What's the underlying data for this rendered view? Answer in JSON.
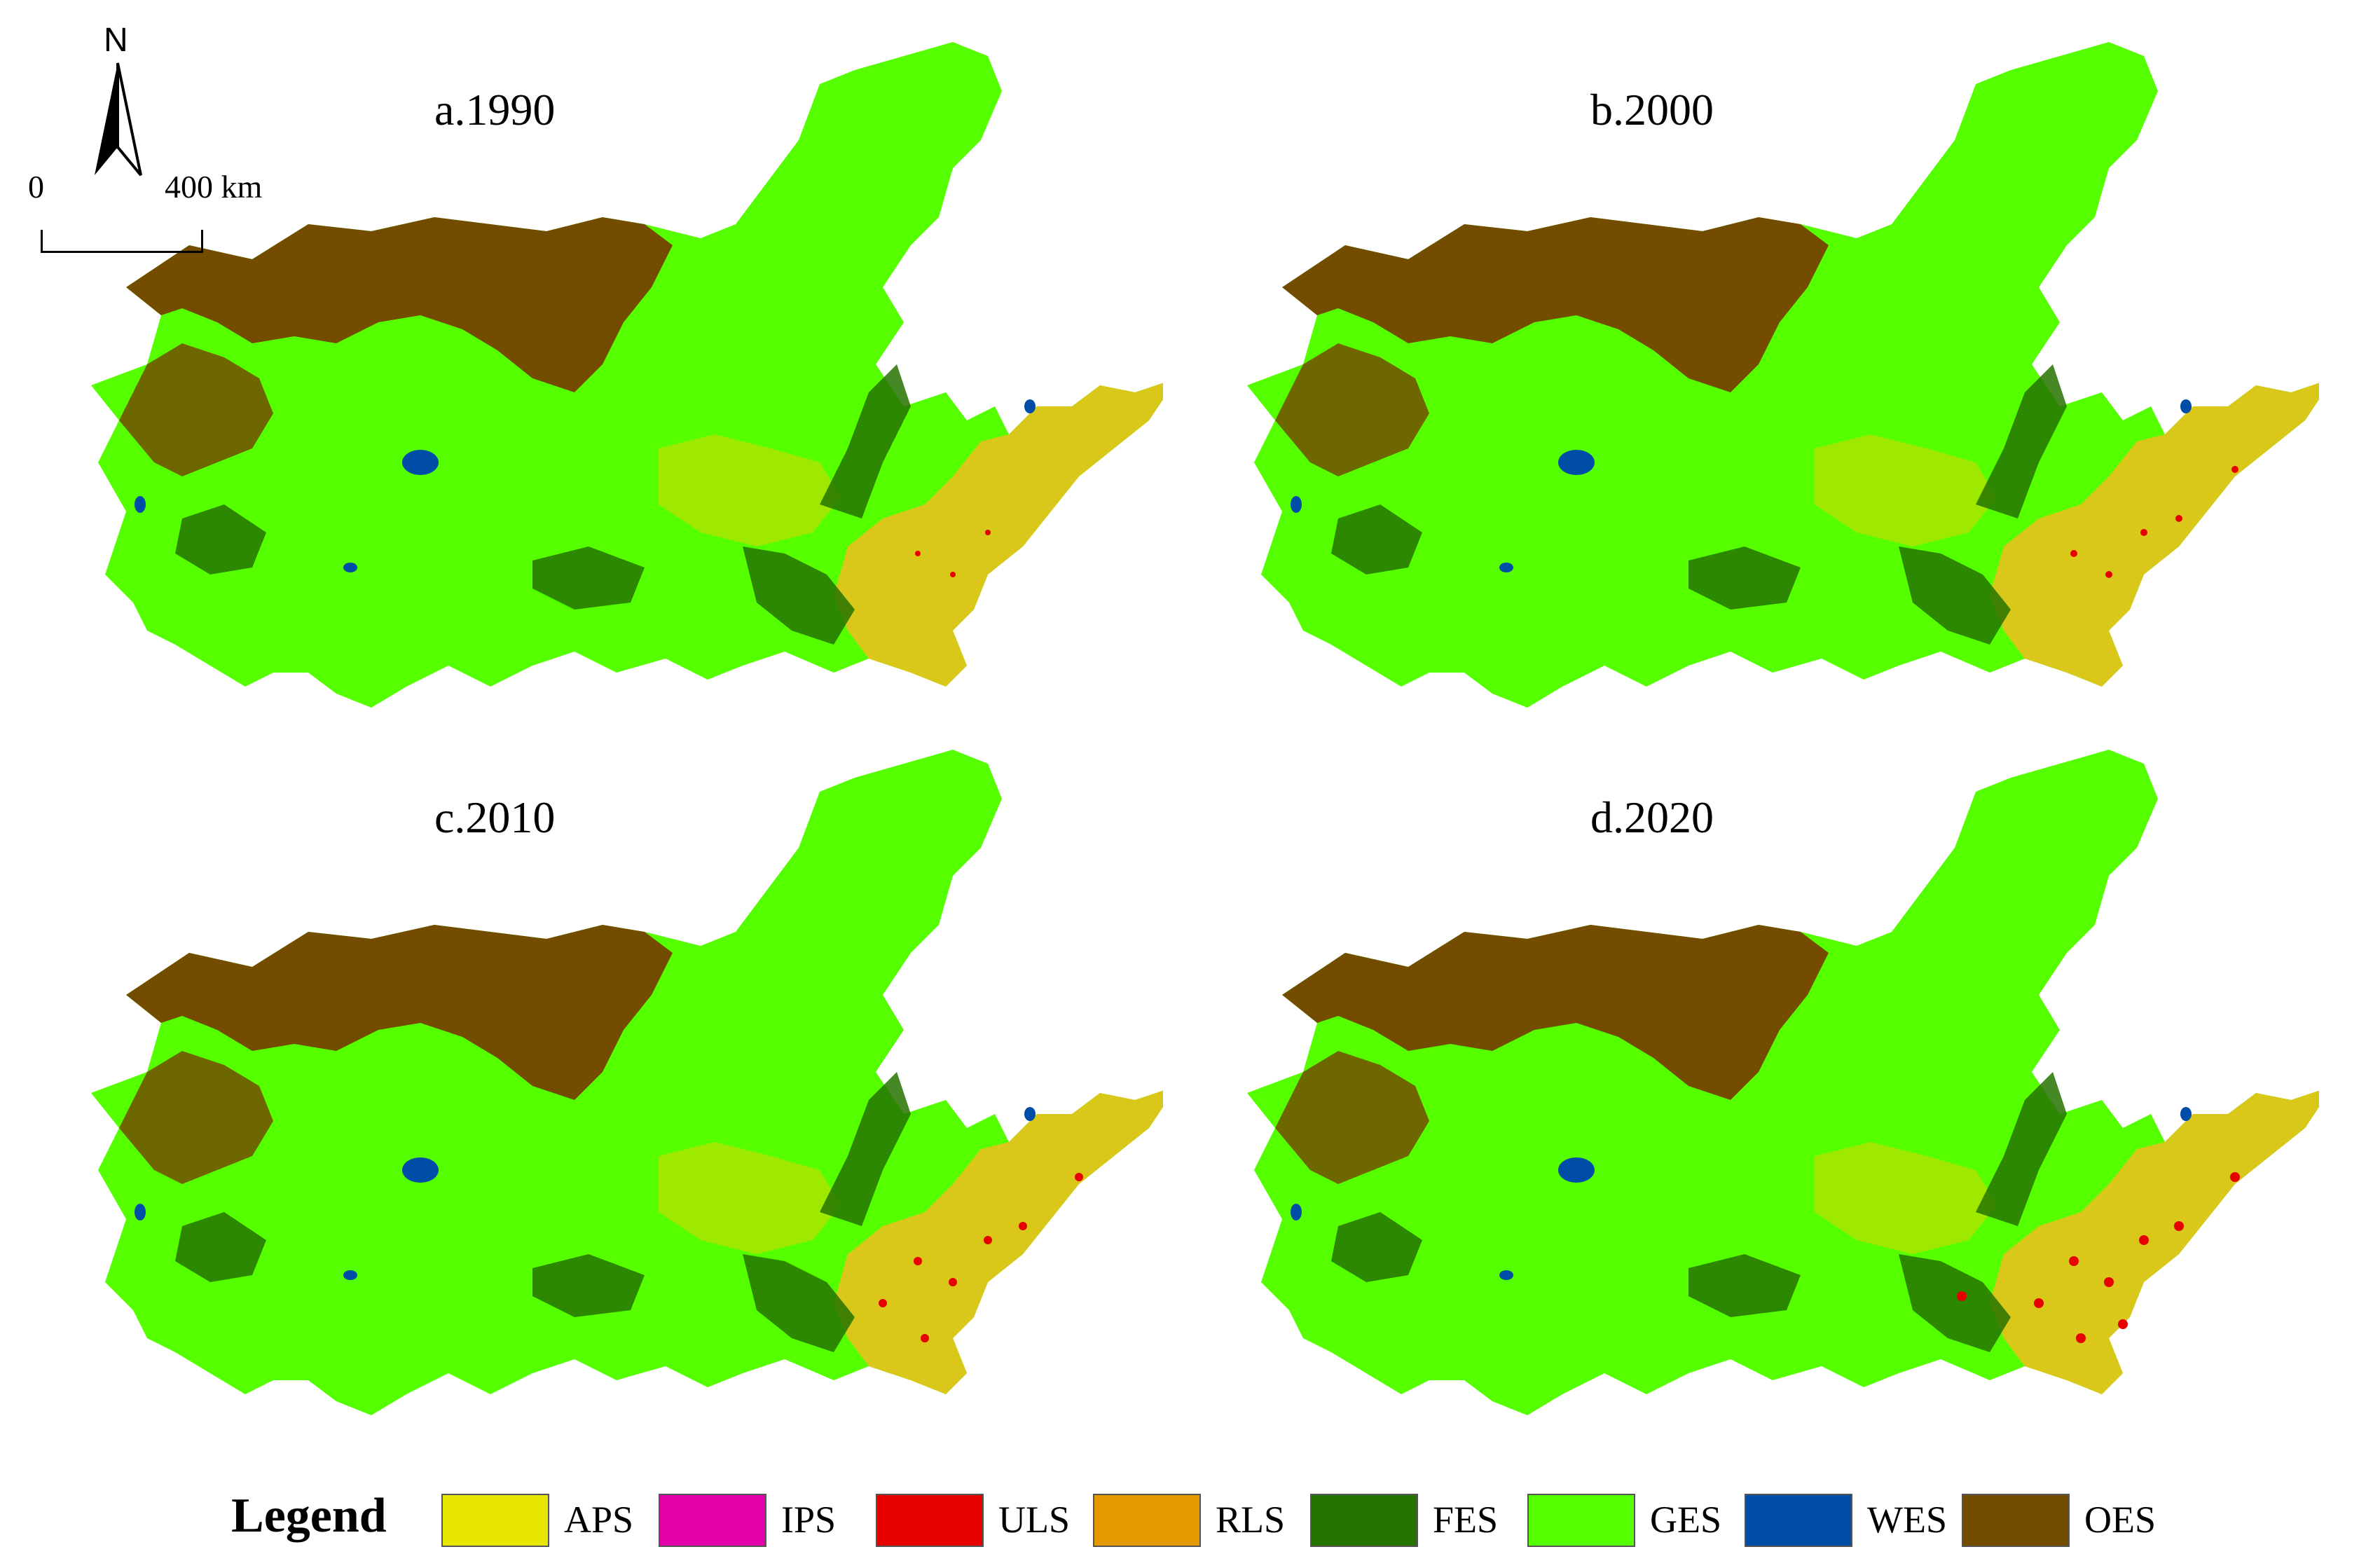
{
  "panels": [
    {
      "id": "a",
      "title": "a.1990"
    },
    {
      "id": "b",
      "title": "b.2000"
    },
    {
      "id": "c",
      "title": "c.2010"
    },
    {
      "id": "d",
      "title": "d.2020"
    }
  ],
  "north_arrow": {
    "label": "N",
    "icon": "north-arrow-icon"
  },
  "scale_bar": {
    "start_label": "0",
    "end_label": "400 km"
  },
  "legend": {
    "title": "Legend",
    "items": [
      {
        "code": "APS",
        "color": "#e6e600"
      },
      {
        "code": "IPS",
        "color": "#e600a9"
      },
      {
        "code": "ULS",
        "color": "#e60000"
      },
      {
        "code": "RLS",
        "color": "#e69800"
      },
      {
        "code": "FES",
        "color": "#267300"
      },
      {
        "code": "GES",
        "color": "#55ff00"
      },
      {
        "code": "WES",
        "color": "#004da8"
      },
      {
        "code": "OES",
        "color": "#734c00"
      }
    ]
  }
}
